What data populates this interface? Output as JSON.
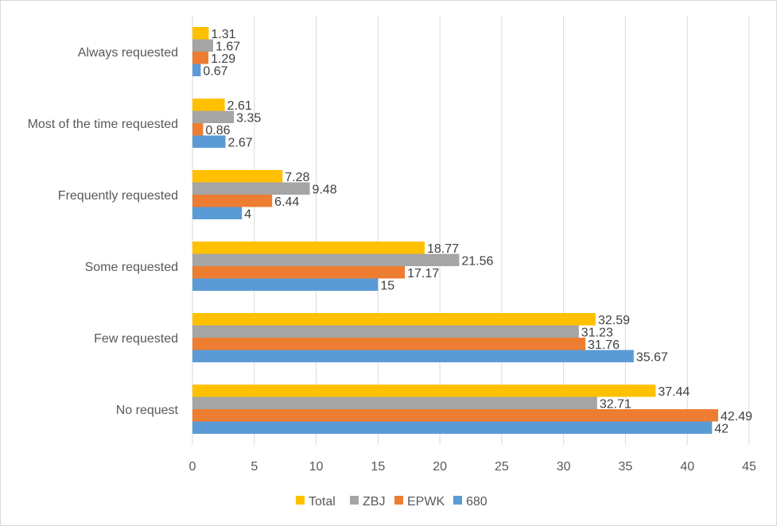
{
  "chart_data": {
    "type": "bar",
    "orientation": "horizontal",
    "categories": [
      "Always requested",
      "Most of the time requested",
      "Frequently requested",
      "Some requested",
      "Few requested",
      "No request"
    ],
    "series": [
      {
        "name": "Total",
        "color": "#FFC000",
        "values": [
          1.31,
          2.61,
          7.28,
          18.77,
          32.59,
          37.44
        ]
      },
      {
        "name": "ZBJ",
        "color": "#A5A5A5",
        "values": [
          1.67,
          3.35,
          9.48,
          21.56,
          31.23,
          32.71
        ]
      },
      {
        "name": "EPWK",
        "color": "#ED7D31",
        "values": [
          1.29,
          0.86,
          6.44,
          17.17,
          31.76,
          42.49
        ]
      },
      {
        "name": "680",
        "color": "#5B9BD5",
        "values": [
          0.67,
          2.67,
          4,
          15,
          35.67,
          42
        ]
      }
    ],
    "xlim": [
      0,
      45
    ],
    "xticks": [
      0,
      5,
      10,
      15,
      20,
      25,
      30,
      35,
      40,
      45
    ],
    "grid": "vertical",
    "legend_position": "bottom",
    "title": "",
    "xlabel": "",
    "ylabel": ""
  }
}
